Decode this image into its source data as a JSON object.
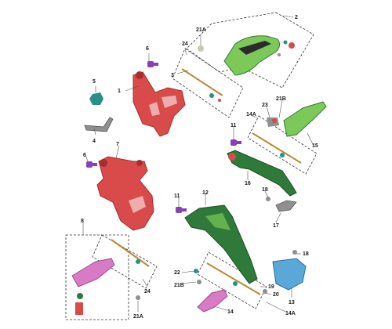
{
  "diagram": {
    "parts": {
      "p1": "1",
      "p2": "2",
      "p3": "3",
      "p4": "4",
      "p5": "5",
      "p6a": "6",
      "p6b": "6",
      "p7": "7",
      "p8": "8",
      "p11a": "11",
      "p11b": "11",
      "p12": "12",
      "p13": "13",
      "p14a": "14",
      "p14b": "14A",
      "p14c": "14A",
      "p15": "15",
      "p16": "16",
      "p17": "17",
      "p18a": "18",
      "p18b": "18",
      "p19": "19",
      "p20": "20",
      "p21a": "21A",
      "p21b": "21A",
      "p21c": "21B",
      "p21d": "21B",
      "p22": "22",
      "p23": "23",
      "p24a": "24",
      "p24b": "24"
    },
    "colors": {
      "red": "#d94a4a",
      "red_dark": "#a52e2e",
      "green_light": "#7cc95a",
      "green_dark": "#2f7a3a",
      "pink": "#d77cc4",
      "blue": "#5aa8d8",
      "purple": "#8a3fb5",
      "teal": "#2a8f8a",
      "grey": "#8f8f8f"
    }
  }
}
